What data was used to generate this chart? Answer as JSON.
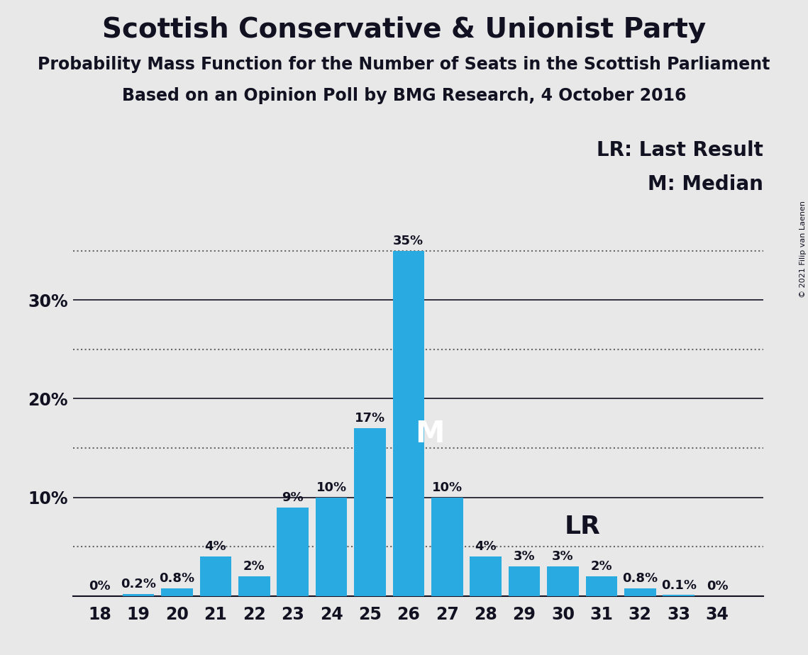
{
  "title": "Scottish Conservative & Unionist Party",
  "subtitle1": "Probability Mass Function for the Number of Seats in the Scottish Parliament",
  "subtitle2": "Based on an Opinion Poll by BMG Research, 4 October 2016",
  "copyright": "© 2021 Filip van Laenen",
  "seats": [
    18,
    19,
    20,
    21,
    22,
    23,
    24,
    25,
    26,
    27,
    28,
    29,
    30,
    31,
    32,
    33,
    34
  ],
  "probabilities": [
    0.0,
    0.2,
    0.8,
    4.0,
    2.0,
    9.0,
    10.0,
    17.0,
    35.0,
    10.0,
    4.0,
    3.0,
    3.0,
    2.0,
    0.8,
    0.1,
    0.0
  ],
  "bar_color": "#29ABE2",
  "background_color": "#E8E8E8",
  "median_seat": 26,
  "last_result_seat": 31,
  "median_label": "M",
  "lr_label": "LR",
  "legend_lr": "LR: Last Result",
  "legend_m": "M: Median",
  "ylim": [
    0,
    38.5
  ],
  "xlim": [
    17.3,
    35.2
  ],
  "title_fontsize": 28,
  "subtitle_fontsize": 17,
  "tick_fontsize": 17,
  "bar_label_fontsize": 13,
  "legend_fontsize": 20,
  "median_fontsize": 30,
  "lr_fontsize": 26,
  "dotted_line_color": "#666666",
  "solid_line_color": "#111122",
  "text_color": "#111122",
  "label_map": {
    "0.0": "0%",
    "0.2": "0.2%",
    "0.8": "0.8%",
    "4.0": "4%",
    "2.0": "2%",
    "9.0": "9%",
    "10.0": "10%",
    "17.0": "17%",
    "35.0": "35%",
    "3.0": "3%",
    "0.1": "0.1%"
  }
}
